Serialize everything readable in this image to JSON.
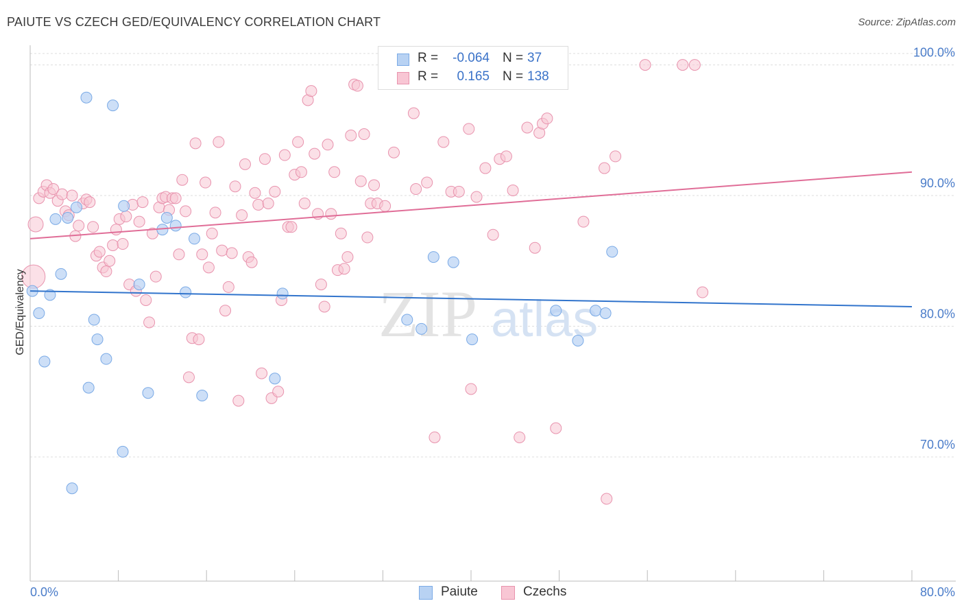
{
  "title": "PAIUTE VS CZECH GED/EQUIVALENCY CORRELATION CHART",
  "source": "Source: ZipAtlas.com",
  "watermark": {
    "zip": "ZIP",
    "atlas": "atlas"
  },
  "colors": {
    "paiute_fill": "#b8d2f3",
    "paiute_stroke": "#7aaae6",
    "paiute_line": "#3174cc",
    "czech_fill": "#f8c6d4",
    "czech_stroke": "#e892ad",
    "czech_line": "#e06d97",
    "grid": "#dddddd",
    "tick_text": "#4a7cc9"
  },
  "legend_top": {
    "rows": [
      {
        "r_label": "R =",
        "r_value": "-0.064",
        "n_label": "N =",
        "n_value": "37"
      },
      {
        "r_label": "R =",
        "r_value": "0.165",
        "n_label": "N =",
        "n_value": "138"
      }
    ]
  },
  "legend_bottom": {
    "items": [
      "Paiute",
      "Czechs"
    ]
  },
  "chart_data": {
    "type": "scatter",
    "ylabel": "GED/Equivalency",
    "x_tick_labels": [
      "0.0%",
      "80.0%"
    ],
    "y_tick_labels": [
      "100.0%",
      "90.0%",
      "80.0%",
      "70.0%"
    ],
    "y_ticks": [
      100,
      90,
      80,
      70
    ],
    "xlim": [
      0,
      80
    ],
    "ylim": [
      60.5,
      101.5
    ],
    "grid": true,
    "legend_position": "top-center",
    "series": [
      {
        "name": "Paiute",
        "trend": {
          "x": [
            0,
            80
          ],
          "y": [
            82.7,
            81.5
          ]
        },
        "points": [
          [
            0.2,
            82.7
          ],
          [
            0.8,
            81.0
          ],
          [
            1.3,
            77.3
          ],
          [
            1.8,
            82.4
          ],
          [
            2.3,
            88.2
          ],
          [
            2.8,
            84.0
          ],
          [
            3.4,
            88.3
          ],
          [
            4.2,
            89.1
          ],
          [
            5.1,
            97.5
          ],
          [
            5.3,
            75.3
          ],
          [
            5.8,
            80.5
          ],
          [
            6.1,
            79.0
          ],
          [
            6.9,
            77.5
          ],
          [
            7.5,
            96.9
          ],
          [
            8.4,
            70.4
          ],
          [
            8.5,
            89.2
          ],
          [
            9.9,
            83.2
          ],
          [
            10.7,
            74.9
          ],
          [
            12.0,
            87.4
          ],
          [
            12.4,
            88.3
          ],
          [
            13.2,
            87.7
          ],
          [
            14.1,
            82.6
          ],
          [
            14.9,
            86.7
          ],
          [
            15.6,
            74.7
          ],
          [
            22.2,
            76.0
          ],
          [
            22.9,
            82.5
          ],
          [
            34.2,
            80.5
          ],
          [
            35.5,
            79.8
          ],
          [
            36.6,
            85.3
          ],
          [
            38.4,
            84.9
          ],
          [
            40.1,
            79.0
          ],
          [
            47.7,
            81.2
          ],
          [
            49.7,
            78.9
          ],
          [
            51.3,
            81.2
          ],
          [
            52.2,
            81.0
          ],
          [
            52.8,
            85.7
          ],
          [
            3.8,
            67.6
          ]
        ]
      },
      {
        "name": "Czechs",
        "trend": {
          "x": [
            0,
            80
          ],
          "y": [
            86.7,
            91.8
          ]
        },
        "points": [
          [
            0.5,
            87.8
          ],
          [
            0.8,
            89.8
          ],
          [
            1.2,
            90.3
          ],
          [
            1.5,
            90.8
          ],
          [
            1.8,
            90.2
          ],
          [
            2.1,
            90.5
          ],
          [
            2.5,
            89.6
          ],
          [
            2.9,
            90.1
          ],
          [
            3.2,
            88.8
          ],
          [
            3.5,
            88.5
          ],
          [
            3.8,
            90.0
          ],
          [
            4.1,
            86.9
          ],
          [
            4.4,
            87.7
          ],
          [
            4.8,
            89.4
          ],
          [
            5.1,
            89.7
          ],
          [
            5.4,
            89.5
          ],
          [
            5.7,
            87.6
          ],
          [
            6.0,
            85.4
          ],
          [
            6.3,
            85.7
          ],
          [
            6.6,
            84.5
          ],
          [
            6.9,
            84.2
          ],
          [
            7.2,
            85.0
          ],
          [
            7.5,
            86.2
          ],
          [
            7.8,
            87.4
          ],
          [
            8.1,
            88.2
          ],
          [
            8.4,
            86.3
          ],
          [
            8.7,
            88.4
          ],
          [
            9.0,
            83.2
          ],
          [
            9.3,
            89.3
          ],
          [
            9.6,
            82.7
          ],
          [
            9.9,
            88.0
          ],
          [
            10.2,
            89.5
          ],
          [
            10.5,
            82.0
          ],
          [
            10.8,
            80.3
          ],
          [
            11.1,
            87.1
          ],
          [
            11.4,
            83.8
          ],
          [
            11.7,
            89.1
          ],
          [
            12.0,
            89.8
          ],
          [
            12.3,
            89.9
          ],
          [
            12.6,
            88.9
          ],
          [
            12.9,
            89.8
          ],
          [
            13.2,
            89.8
          ],
          [
            13.5,
            85.5
          ],
          [
            13.8,
            91.2
          ],
          [
            14.1,
            88.8
          ],
          [
            14.4,
            76.1
          ],
          [
            14.7,
            79.1
          ],
          [
            15.0,
            94.0
          ],
          [
            15.3,
            79.0
          ],
          [
            15.6,
            85.5
          ],
          [
            15.9,
            91.0
          ],
          [
            16.2,
            84.5
          ],
          [
            16.5,
            87.1
          ],
          [
            16.8,
            88.7
          ],
          [
            17.1,
            94.1
          ],
          [
            17.4,
            85.8
          ],
          [
            17.7,
            81.2
          ],
          [
            18.0,
            83.0
          ],
          [
            18.3,
            85.6
          ],
          [
            18.6,
            90.7
          ],
          [
            18.9,
            74.3
          ],
          [
            19.2,
            88.5
          ],
          [
            19.5,
            92.4
          ],
          [
            19.8,
            85.3
          ],
          [
            20.1,
            84.9
          ],
          [
            20.4,
            90.2
          ],
          [
            20.7,
            89.3
          ],
          [
            21.0,
            76.4
          ],
          [
            21.3,
            92.8
          ],
          [
            21.6,
            89.4
          ],
          [
            21.9,
            74.5
          ],
          [
            22.2,
            90.3
          ],
          [
            22.5,
            75.0
          ],
          [
            22.8,
            82.0
          ],
          [
            23.1,
            93.1
          ],
          [
            23.4,
            87.6
          ],
          [
            23.7,
            87.6
          ],
          [
            24.0,
            91.6
          ],
          [
            24.3,
            94.1
          ],
          [
            24.6,
            91.8
          ],
          [
            24.9,
            89.4
          ],
          [
            25.2,
            97.3
          ],
          [
            25.5,
            98.0
          ],
          [
            25.8,
            93.2
          ],
          [
            26.1,
            88.6
          ],
          [
            26.4,
            83.2
          ],
          [
            26.7,
            81.5
          ],
          [
            27.0,
            93.9
          ],
          [
            27.3,
            88.6
          ],
          [
            27.6,
            91.8
          ],
          [
            27.9,
            84.3
          ],
          [
            28.2,
            87.1
          ],
          [
            28.5,
            84.4
          ],
          [
            28.8,
            85.3
          ],
          [
            29.1,
            94.6
          ],
          [
            29.4,
            98.5
          ],
          [
            29.7,
            98.4
          ],
          [
            30.0,
            91.1
          ],
          [
            30.3,
            94.7
          ],
          [
            30.6,
            86.8
          ],
          [
            30.9,
            89.4
          ],
          [
            31.2,
            90.8
          ],
          [
            31.5,
            89.4
          ],
          [
            32.2,
            89.2
          ],
          [
            33.0,
            93.3
          ],
          [
            33.8,
            100.0
          ],
          [
            34.8,
            96.3
          ],
          [
            35.0,
            90.5
          ],
          [
            36.0,
            91.0
          ],
          [
            36.7,
            71.5
          ],
          [
            37.5,
            94.1
          ],
          [
            38.2,
            90.3
          ],
          [
            38.9,
            90.3
          ],
          [
            39.8,
            95.1
          ],
          [
            40.5,
            89.9
          ],
          [
            41.3,
            92.1
          ],
          [
            42.0,
            87.0
          ],
          [
            42.6,
            92.8
          ],
          [
            43.2,
            93.0
          ],
          [
            43.8,
            90.4
          ],
          [
            44.4,
            71.5
          ],
          [
            45.1,
            95.2
          ],
          [
            45.8,
            86.0
          ],
          [
            46.2,
            94.8
          ],
          [
            46.5,
            95.5
          ],
          [
            46.9,
            95.9
          ],
          [
            47.7,
            72.2
          ],
          [
            48.1,
            100.0
          ],
          [
            50.2,
            88.0
          ],
          [
            52.1,
            92.1
          ],
          [
            53.1,
            93.0
          ],
          [
            55.8,
            100.0
          ],
          [
            59.2,
            100.0
          ],
          [
            60.3,
            100.0
          ],
          [
            61.0,
            82.6
          ],
          [
            40.0,
            75.2
          ],
          [
            52.3,
            66.8
          ]
        ]
      }
    ]
  }
}
